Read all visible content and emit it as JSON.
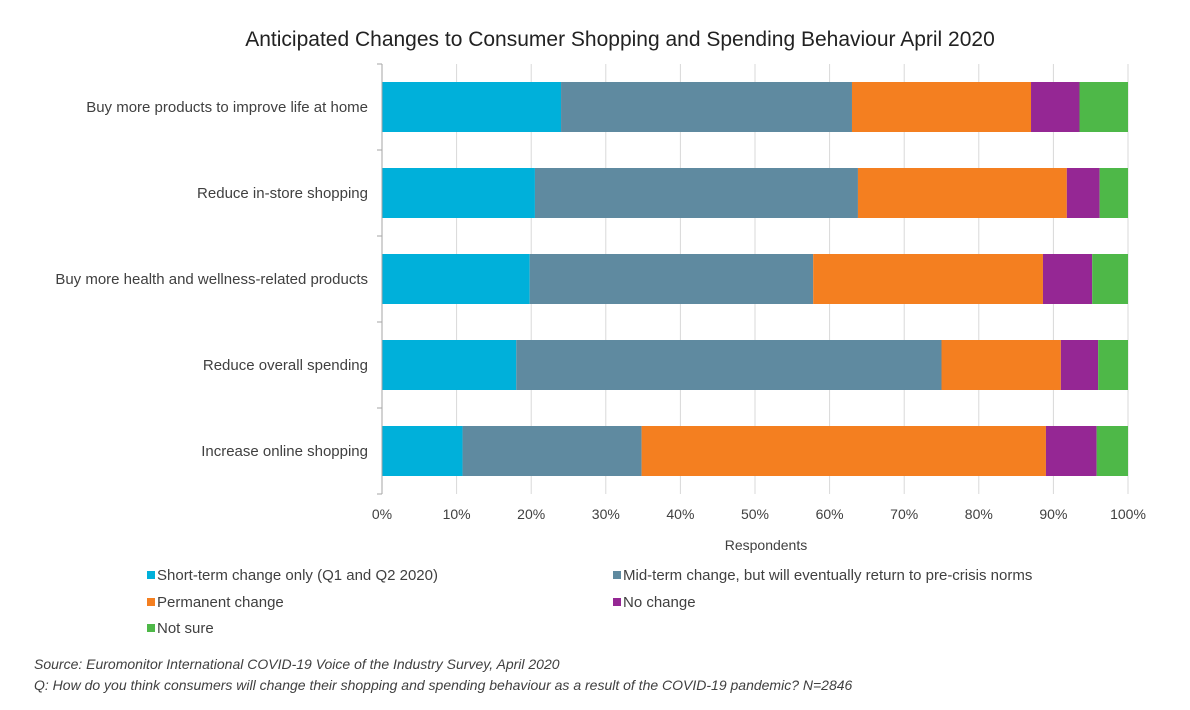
{
  "chart_data": {
    "type": "bar",
    "orientation": "horizontal",
    "stacked": true,
    "title": "Anticipated Changes to Consumer Shopping and Spending Behaviour April 2020",
    "xlabel": "Respondents",
    "ylabel": "",
    "xlim": [
      0,
      100
    ],
    "x_ticks": [
      "0%",
      "10%",
      "20%",
      "30%",
      "40%",
      "50%",
      "60%",
      "70%",
      "80%",
      "90%",
      "100%"
    ],
    "categories": [
      "Buy more products to improve life at home",
      "Reduce in-store shopping",
      "Buy more health and wellness-related products",
      "Reduce overall spending",
      "Increase online shopping"
    ],
    "series": [
      {
        "name": "Short-term change only (Q1 and Q2 2020)",
        "color": "#00B0DA",
        "values": [
          24,
          20.5,
          19.8,
          18,
          10.8
        ]
      },
      {
        "name": "Mid-term change, but will eventually return to pre-crisis norms",
        "color": "#5F8AA0",
        "values": [
          39,
          43.3,
          38,
          57,
          24
        ]
      },
      {
        "name": "Permanent change",
        "color": "#F47F20",
        "values": [
          24,
          28,
          30.8,
          16,
          54.2
        ]
      },
      {
        "name": "No change",
        "color": "#952794",
        "values": [
          6.5,
          4.4,
          6.6,
          5,
          6.8
        ]
      },
      {
        "name": "Not sure",
        "color": "#4EB848",
        "values": [
          6.5,
          3.8,
          4.8,
          4,
          4.2
        ]
      }
    ],
    "grid": true,
    "legend_position": "bottom"
  },
  "source_line": "Source: Euromonitor International COVID-19 Voice of the Industry Survey, April 2020",
  "question_line": "Q: How do you think consumers will change their shopping and spending behaviour as a result of the COVID-19 pandemic? N=2846"
}
